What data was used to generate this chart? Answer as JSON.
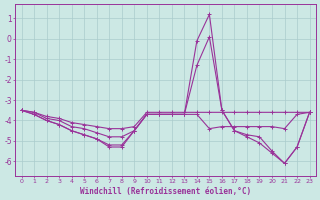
{
  "xlabel": "Windchill (Refroidissement éolien,°C)",
  "bg_color": "#cce8e4",
  "grid_color": "#aacccc",
  "line_color": "#993399",
  "xlim": [
    -0.5,
    23.5
  ],
  "ylim": [
    -6.7,
    1.7
  ],
  "yticks": [
    1,
    0,
    -1,
    -2,
    -3,
    -4,
    -5,
    -6
  ],
  "xticks": [
    0,
    1,
    2,
    3,
    4,
    5,
    6,
    7,
    8,
    9,
    10,
    11,
    12,
    13,
    14,
    15,
    16,
    17,
    18,
    19,
    20,
    21,
    22,
    23
  ],
  "lineA": [
    -3.5,
    -3.6,
    -3.8,
    -3.9,
    -4.1,
    -4.2,
    -4.3,
    -4.4,
    -4.4,
    -4.3,
    -3.6,
    -3.6,
    -3.6,
    -3.6,
    -3.6,
    -3.6,
    -3.6,
    -3.6,
    -3.6,
    -3.6,
    -3.6,
    -3.6,
    -3.6,
    -3.6
  ],
  "lineB": [
    -3.5,
    -3.6,
    -3.9,
    -4.0,
    -4.3,
    -4.4,
    -4.6,
    -4.8,
    -4.8,
    -4.5,
    -3.7,
    -3.7,
    -3.7,
    -3.7,
    -3.7,
    -4.4,
    -4.3,
    -4.3,
    -4.3,
    -4.3,
    -4.3,
    -4.4,
    -3.7,
    -3.6
  ],
  "lineC": [
    -3.5,
    -3.7,
    -4.0,
    -4.2,
    -4.5,
    -4.7,
    -4.9,
    -5.2,
    -5.2,
    -4.5,
    -3.7,
    -3.7,
    -3.7,
    -3.7,
    -0.1,
    1.2,
    -3.5,
    -4.5,
    -4.7,
    -4.8,
    -5.5,
    -6.1,
    -5.3,
    -3.6
  ],
  "lineD": [
    -3.5,
    -3.7,
    -4.0,
    -4.2,
    -4.5,
    -4.7,
    -4.9,
    -5.3,
    -5.3,
    -4.5,
    -3.7,
    -3.7,
    -3.7,
    -3.7,
    -1.3,
    0.1,
    -3.5,
    -4.5,
    -4.8,
    -5.1,
    -5.6,
    -6.1,
    -5.3,
    -3.6
  ]
}
